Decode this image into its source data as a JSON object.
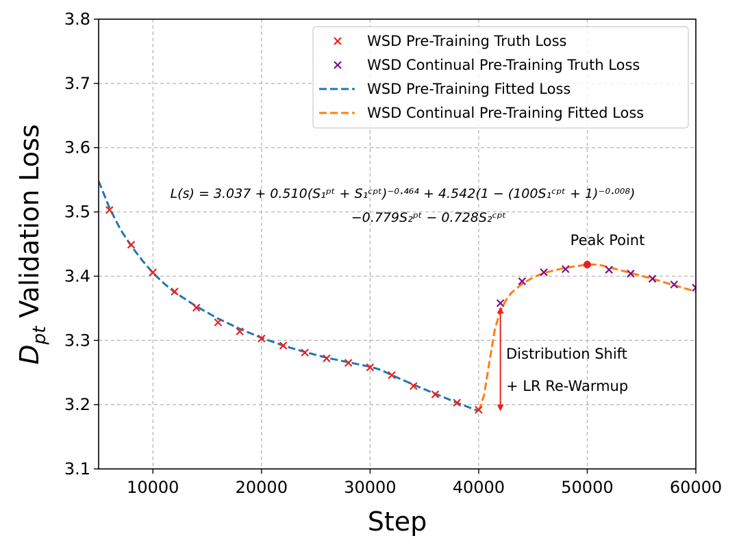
{
  "chart_data": {
    "type": "line",
    "xlabel": "Step",
    "ylabel": "D",
    "ylabel_sub": "pt",
    "ylabel_rest": " Validation Loss",
    "xlim": [
      5000,
      60000
    ],
    "ylim": [
      3.1,
      3.8
    ],
    "xticks": [
      10000,
      20000,
      30000,
      40000,
      50000,
      60000
    ],
    "yticks": [
      3.1,
      3.2,
      3.3,
      3.4,
      3.5,
      3.6,
      3.7,
      3.8
    ],
    "grid": true,
    "legend_position": "top-right",
    "series": [
      {
        "name": "WSD Pre-Training Truth Loss",
        "kind": "scatter",
        "marker": "x",
        "color": "#e8231f",
        "points": [
          [
            6000,
            3.503
          ],
          [
            8000,
            3.449
          ],
          [
            10000,
            3.406
          ],
          [
            12000,
            3.376
          ],
          [
            14000,
            3.351
          ],
          [
            16000,
            3.328
          ],
          [
            18000,
            3.314
          ],
          [
            20000,
            3.303
          ],
          [
            22000,
            3.292
          ],
          [
            24000,
            3.281
          ],
          [
            26000,
            3.272
          ],
          [
            28000,
            3.265
          ],
          [
            30000,
            3.258
          ],
          [
            32000,
            3.246
          ],
          [
            34000,
            3.229
          ],
          [
            36000,
            3.216
          ],
          [
            38000,
            3.203
          ],
          [
            40000,
            3.192
          ]
        ]
      },
      {
        "name": "WSD Continual Pre-Training Truth Loss",
        "kind": "scatter",
        "marker": "x",
        "color": "#7f0f84",
        "points": [
          [
            42000,
            3.358
          ],
          [
            44000,
            3.392
          ],
          [
            46000,
            3.406
          ],
          [
            48000,
            3.411
          ],
          [
            52000,
            3.41
          ],
          [
            54000,
            3.404
          ],
          [
            56000,
            3.396
          ],
          [
            58000,
            3.387
          ],
          [
            60000,
            3.382
          ]
        ]
      },
      {
        "name": "WSD Pre-Training Fitted Loss",
        "kind": "line",
        "style": "dashed",
        "color": "#1f77b4",
        "points": [
          [
            5000,
            3.548
          ],
          [
            6000,
            3.506
          ],
          [
            7000,
            3.473
          ],
          [
            8000,
            3.447
          ],
          [
            9000,
            3.425
          ],
          [
            10000,
            3.405
          ],
          [
            11000,
            3.389
          ],
          [
            12000,
            3.375
          ],
          [
            14000,
            3.353
          ],
          [
            16000,
            3.334
          ],
          [
            18000,
            3.318
          ],
          [
            20000,
            3.304
          ],
          [
            22000,
            3.292
          ],
          [
            24000,
            3.282
          ],
          [
            26000,
            3.273
          ],
          [
            28000,
            3.266
          ],
          [
            30000,
            3.259
          ],
          [
            31000,
            3.254
          ],
          [
            32000,
            3.246
          ],
          [
            34000,
            3.231
          ],
          [
            36000,
            3.217
          ],
          [
            38000,
            3.203
          ],
          [
            40000,
            3.19
          ]
        ]
      },
      {
        "name": "WSD Continual Pre-Training Fitted Loss",
        "kind": "line",
        "style": "dashed",
        "color": "#ff7f0e",
        "points": [
          [
            40000,
            3.19
          ],
          [
            40500,
            3.215
          ],
          [
            41000,
            3.268
          ],
          [
            41500,
            3.318
          ],
          [
            42000,
            3.346
          ],
          [
            42500,
            3.362
          ],
          [
            43000,
            3.374
          ],
          [
            44000,
            3.388
          ],
          [
            45000,
            3.398
          ],
          [
            46000,
            3.405
          ],
          [
            48000,
            3.413
          ],
          [
            50000,
            3.418
          ],
          [
            51000,
            3.418
          ],
          [
            52000,
            3.414
          ],
          [
            54000,
            3.405
          ],
          [
            56000,
            3.396
          ],
          [
            58000,
            3.386
          ],
          [
            60000,
            3.376
          ]
        ]
      }
    ],
    "peak_point": {
      "x": 50000,
      "y": 3.418,
      "label": "Peak Point",
      "color": "#e8231f"
    },
    "shift_arrow": {
      "x": 42000,
      "y_low": 3.195,
      "y_high": 3.347,
      "color": "#e8231f"
    },
    "annotations": {
      "shift_line1": "Distribution Shift",
      "shift_line2": "+ LR Re-Warmup"
    },
    "formula": {
      "line1": "L(s) = 3.037 + 0.510(S₁ᵖᵗ + S₁ᶜᵖᵗ)⁻⁰·⁴⁶⁴ + 4.542(1 − (100S₁ᶜᵖᵗ + 1)⁻⁰·⁰⁰⁸)",
      "line2": "−0.779S₂ᵖᵗ − 0.728S₂ᶜᵖᵗ"
    }
  }
}
